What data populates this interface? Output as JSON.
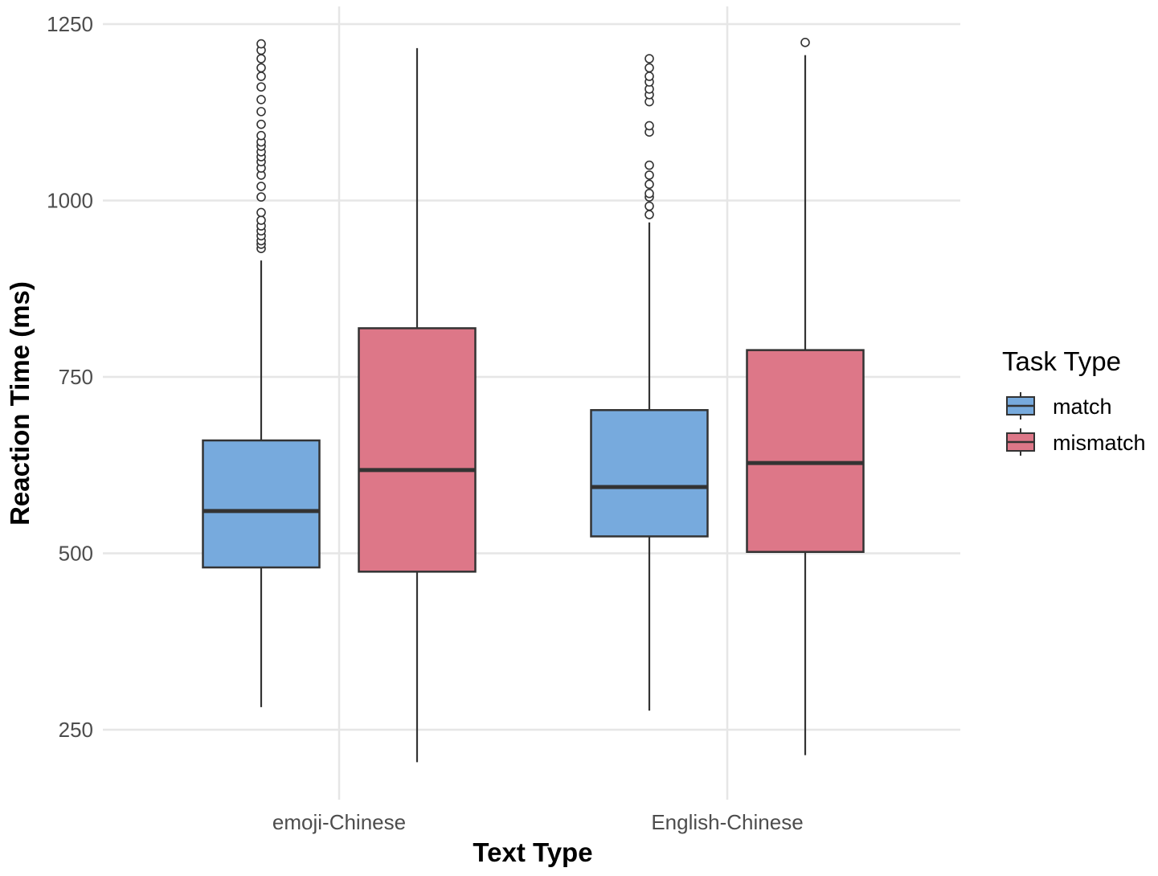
{
  "chart_data": {
    "type": "boxplot",
    "xlabel": "Text Type",
    "ylabel": "Reaction Time (ms)",
    "ylim": [
      175,
      1260
    ],
    "yticks": [
      250,
      500,
      750,
      1000,
      1250
    ],
    "categories": [
      "emoji-Chinese",
      "English-Chinese"
    ],
    "grid": true,
    "legend": {
      "title": "Task Type",
      "position": "right"
    },
    "series": [
      {
        "name": "match",
        "color": "#77AADD",
        "boxes": [
          {
            "category": "emoji-Chinese",
            "whisker_low": 282,
            "q1": 480,
            "median": 560,
            "q3": 660,
            "whisker_high": 915,
            "outliers": [
              932,
              938,
              943,
              950,
              957,
              964,
              972,
              983,
              1005,
              1020,
              1036,
              1046,
              1055,
              1062,
              1069,
              1077,
              1083,
              1092,
              1108,
              1126,
              1143,
              1161,
              1176,
              1188,
              1201,
              1213,
              1222
            ]
          },
          {
            "category": "English-Chinese",
            "whisker_low": 277,
            "q1": 524,
            "median": 594,
            "q3": 703,
            "whisker_high": 969,
            "outliers": [
              980,
              992,
              1005,
              1010,
              1023,
              1036,
              1050,
              1097,
              1106,
              1140,
              1150,
              1158,
              1168,
              1176,
              1188,
              1201
            ]
          }
        ]
      },
      {
        "name": "mismatch",
        "color": "#DD7788",
        "boxes": [
          {
            "category": "emoji-Chinese",
            "whisker_low": 204,
            "q1": 474,
            "median": 618,
            "q3": 819,
            "whisker_high": 1216,
            "outliers": []
          },
          {
            "category": "English-Chinese",
            "whisker_low": 214,
            "q1": 502,
            "median": 628,
            "q3": 788,
            "whisker_high": 1206,
            "outliers": [
              1224
            ]
          }
        ]
      }
    ]
  }
}
